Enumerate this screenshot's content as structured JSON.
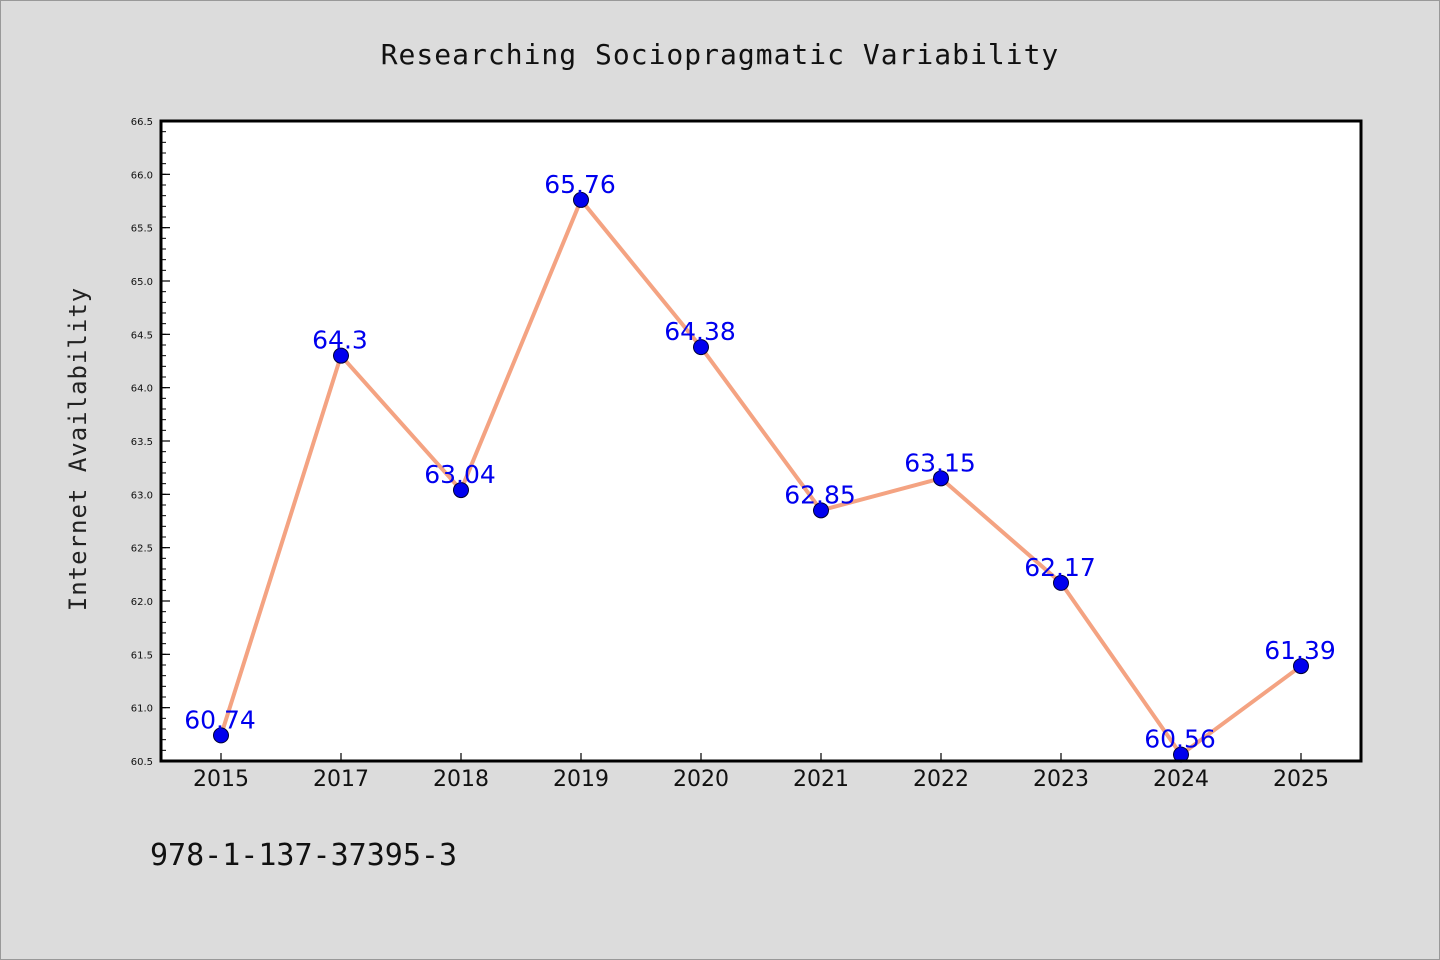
{
  "chart_data": {
    "type": "line",
    "title": "Researching Sociopragmatic Variability",
    "xlabel": "",
    "ylabel": "Internet Availability",
    "categories": [
      "2015",
      "2017",
      "2018",
      "2019",
      "2020",
      "2021",
      "2022",
      "2023",
      "2024",
      "2025"
    ],
    "series": [
      {
        "values": [
          60.74,
          64.3,
          63.04,
          65.76,
          64.38,
          62.85,
          63.15,
          62.17,
          60.56,
          61.39
        ],
        "data_labels": [
          "60.74",
          "64.3",
          "63.04",
          "65.76",
          "64.38",
          "62.85",
          "63.15",
          "62.17",
          "60.56",
          "61.39"
        ],
        "line_color": "#f4a382",
        "marker_color": "#0000ee",
        "label_color": "#0000ee"
      }
    ],
    "ylim": [
      60.5,
      66.5
    ],
    "yticks": [
      "60.5",
      "61.0",
      "61.5",
      "62.0",
      "62.5",
      "63.0",
      "63.5",
      "64.0",
      "64.5",
      "65.0",
      "65.5",
      "66.0",
      "66.5"
    ],
    "grid": false,
    "legend": "none"
  },
  "footer": {
    "isbn": "978-1-137-37395-3"
  },
  "colors": {
    "background": "#dcdcdc",
    "plot_background": "#ffffff"
  }
}
